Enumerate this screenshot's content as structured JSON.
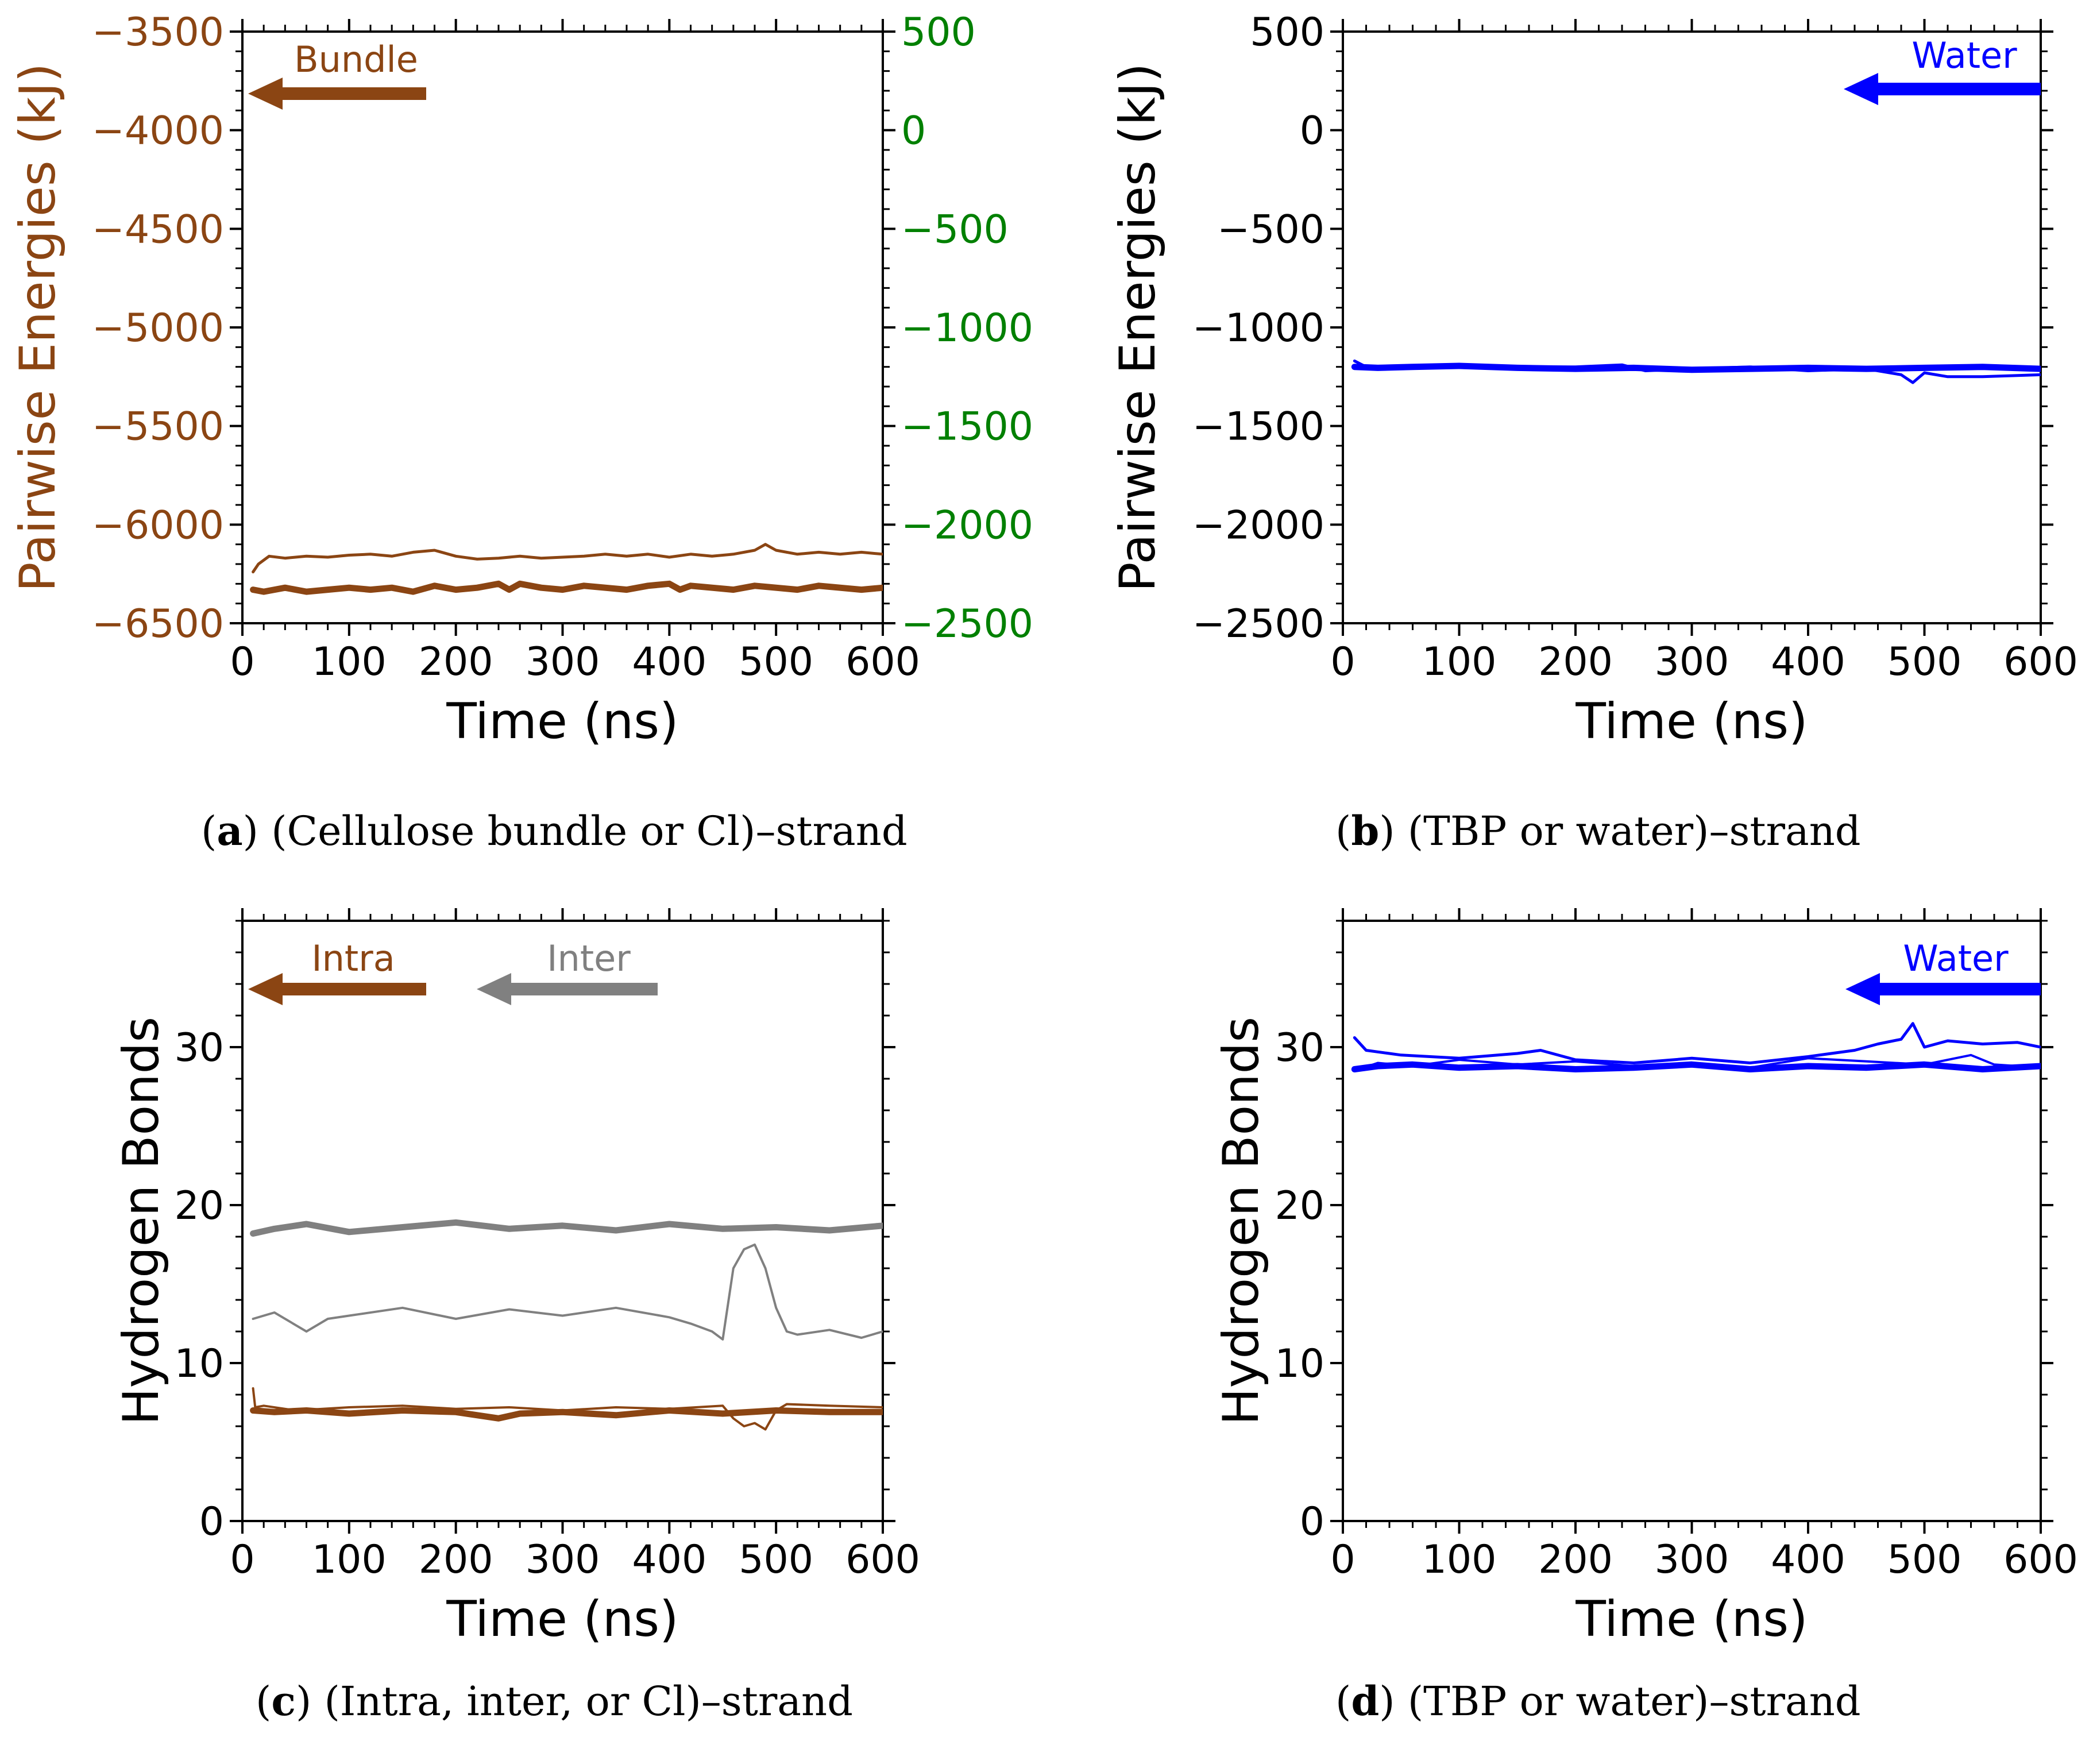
{
  "colors": {
    "brown": "#8b4513",
    "green": "#008000",
    "gray": "#808080",
    "blue": "#0000ff",
    "black": "#000000"
  },
  "captions": {
    "a": {
      "tag": "a",
      "text": "(Cellulose bundle or Cl)–strand"
    },
    "b": {
      "tag": "b",
      "text": "(TBP or water)–strand"
    },
    "c": {
      "tag": "c",
      "text": "(Intra, inter, or Cl)–strand"
    },
    "d": {
      "tag": "d",
      "text": "(TBP or water)–strand"
    }
  },
  "chart_data": [
    {
      "panel": "a",
      "type": "line",
      "xlabel": "Time (ns)",
      "ylabel": "Pairwise Energies (kJ)",
      "xlim": [
        0,
        600
      ],
      "ylim": [
        -6500,
        -3500
      ],
      "xticks": [
        "0",
        "100",
        "200",
        "300",
        "400",
        "500",
        "600"
      ],
      "yticks": [
        "−6500",
        "−6000",
        "−5500",
        "−5000",
        "−4500",
        "−4000",
        "−3500"
      ],
      "y2lim": [
        -2500,
        500
      ],
      "y2ticks": [
        "−2500",
        "−2000",
        "−1500",
        "−1000",
        "−500",
        "0",
        "500"
      ],
      "legend": [
        {
          "label": "Bundle",
          "color": "#8b4513",
          "arrow": "left"
        }
      ],
      "series": [
        {
          "name": "Bundle (thin)",
          "color": "#8b4513",
          "width": 5,
          "axis": "left",
          "x": [
            10,
            15,
            25,
            40,
            60,
            80,
            100,
            120,
            140,
            160,
            180,
            200,
            220,
            240,
            260,
            280,
            300,
            320,
            340,
            360,
            380,
            400,
            420,
            440,
            460,
            480,
            490,
            500,
            520,
            540,
            560,
            580,
            600
          ],
          "y": [
            -6240,
            -6200,
            -6160,
            -6170,
            -6160,
            -6165,
            -6155,
            -6150,
            -6160,
            -6140,
            -6130,
            -6160,
            -6175,
            -6170,
            -6160,
            -6170,
            -6165,
            -6160,
            -6150,
            -6160,
            -6150,
            -6165,
            -6150,
            -6160,
            -6150,
            -6130,
            -6100,
            -6130,
            -6150,
            -6140,
            -6150,
            -6140,
            -6150
          ]
        },
        {
          "name": "Bundle (thick)",
          "color": "#8b4513",
          "width": 11,
          "axis": "left",
          "x": [
            10,
            20,
            40,
            60,
            80,
            100,
            120,
            140,
            160,
            180,
            200,
            220,
            240,
            250,
            260,
            280,
            300,
            320,
            340,
            360,
            380,
            400,
            410,
            420,
            440,
            460,
            480,
            500,
            520,
            540,
            560,
            580,
            600
          ],
          "y": [
            -6330,
            -6340,
            -6320,
            -6340,
            -6330,
            -6320,
            -6330,
            -6320,
            -6340,
            -6310,
            -6330,
            -6320,
            -6300,
            -6330,
            -6300,
            -6320,
            -6330,
            -6310,
            -6320,
            -6330,
            -6310,
            -6300,
            -6330,
            -6310,
            -6320,
            -6330,
            -6310,
            -6320,
            -6330,
            -6310,
            -6320,
            -6330,
            -6320
          ]
        }
      ]
    },
    {
      "panel": "b",
      "type": "line",
      "xlabel": "Time (ns)",
      "ylabel": "Pairwise Energies (kJ)",
      "xlim": [
        0,
        600
      ],
      "ylim": [
        -2500,
        500
      ],
      "xticks": [
        "0",
        "100",
        "200",
        "300",
        "400",
        "500",
        "600"
      ],
      "yticks": [
        "−2500",
        "−2000",
        "−1500",
        "−1000",
        "−500",
        "0",
        "500"
      ],
      "legend": [
        {
          "label": "Water",
          "color": "#0000ff",
          "arrow": "left"
        }
      ],
      "series": [
        {
          "name": "Water (thin)",
          "color": "#0000ff",
          "width": 5,
          "axis": "left",
          "x": [
            10,
            20,
            50,
            100,
            150,
            200,
            240,
            260,
            300,
            350,
            400,
            450,
            480,
            490,
            500,
            520,
            550,
            600
          ],
          "y": [
            -1170,
            -1200,
            -1195,
            -1190,
            -1200,
            -1200,
            -1190,
            -1220,
            -1210,
            -1200,
            -1220,
            -1210,
            -1240,
            -1280,
            -1230,
            -1250,
            -1250,
            -1240
          ]
        },
        {
          "name": "Water (thick)",
          "color": "#0000ff",
          "width": 11,
          "axis": "left",
          "x": [
            10,
            30,
            60,
            100,
            150,
            200,
            250,
            300,
            350,
            400,
            450,
            500,
            550,
            600
          ],
          "y": [
            -1200,
            -1205,
            -1200,
            -1195,
            -1205,
            -1210,
            -1205,
            -1215,
            -1210,
            -1205,
            -1210,
            -1205,
            -1200,
            -1210
          ]
        }
      ]
    },
    {
      "panel": "c",
      "type": "line",
      "xlabel": "Time (ns)",
      "ylabel": "Hydrogen Bonds",
      "xlim": [
        0,
        600
      ],
      "ylim": [
        0,
        38
      ],
      "xticks": [
        "0",
        "100",
        "200",
        "300",
        "400",
        "500",
        "600"
      ],
      "yticks": [
        "0",
        "10",
        "20",
        "30"
      ],
      "legend": [
        {
          "label": "Intra",
          "color": "#8b4513",
          "arrow": "left"
        },
        {
          "label": "Inter",
          "color": "#808080",
          "arrow": "left"
        }
      ],
      "series": [
        {
          "name": "Inter (thick)",
          "color": "#808080",
          "width": 11,
          "axis": "left",
          "x": [
            10,
            30,
            60,
            100,
            150,
            200,
            250,
            300,
            350,
            400,
            450,
            500,
            550,
            600
          ],
          "y": [
            18.2,
            18.5,
            18.8,
            18.3,
            18.6,
            18.9,
            18.5,
            18.7,
            18.4,
            18.8,
            18.5,
            18.6,
            18.4,
            18.7
          ]
        },
        {
          "name": "Inter (thin)",
          "color": "#808080",
          "width": 4,
          "axis": "left",
          "x": [
            10,
            30,
            60,
            80,
            100,
            150,
            200,
            250,
            300,
            350,
            400,
            420,
            440,
            450,
            460,
            470,
            480,
            490,
            500,
            510,
            520,
            550,
            580,
            600
          ],
          "y": [
            12.8,
            13.2,
            12.0,
            12.8,
            13.0,
            13.5,
            12.8,
            13.4,
            13.0,
            13.5,
            12.9,
            12.5,
            12.0,
            11.5,
            16.0,
            17.2,
            17.5,
            16.0,
            13.5,
            12.0,
            11.8,
            12.1,
            11.6,
            12.0
          ]
        },
        {
          "name": "Intra (thin)",
          "color": "#8b4513",
          "width": 4,
          "axis": "left",
          "x": [
            10,
            12,
            20,
            50,
            100,
            150,
            200,
            250,
            300,
            350,
            400,
            450,
            460,
            470,
            480,
            490,
            500,
            510,
            550,
            600
          ],
          "y": [
            8.4,
            7.2,
            7.3,
            7.0,
            7.2,
            7.3,
            7.1,
            7.2,
            7.0,
            7.2,
            7.1,
            7.3,
            6.5,
            6.0,
            6.2,
            5.8,
            7.0,
            7.4,
            7.3,
            7.2
          ]
        },
        {
          "name": "Intra (thick)",
          "color": "#8b4513",
          "width": 11,
          "axis": "left",
          "x": [
            10,
            30,
            60,
            100,
            150,
            200,
            240,
            260,
            300,
            350,
            400,
            450,
            500,
            550,
            600
          ],
          "y": [
            7.0,
            6.9,
            7.0,
            6.8,
            7.0,
            6.9,
            6.5,
            6.8,
            6.9,
            6.7,
            7.0,
            6.8,
            7.0,
            6.9,
            6.9
          ]
        }
      ]
    },
    {
      "panel": "d",
      "type": "line",
      "xlabel": "Time (ns)",
      "ylabel": "Hydrogen Bonds",
      "xlim": [
        0,
        600
      ],
      "ylim": [
        0,
        38
      ],
      "xticks": [
        "0",
        "100",
        "200",
        "300",
        "400",
        "500",
        "600"
      ],
      "yticks": [
        "0",
        "10",
        "20",
        "30"
      ],
      "legend": [
        {
          "label": "Water",
          "color": "#0000ff",
          "arrow": "left"
        }
      ],
      "series": [
        {
          "name": "Water (thin)",
          "color": "#0000ff",
          "width": 5,
          "axis": "left",
          "x": [
            10,
            20,
            50,
            100,
            150,
            170,
            200,
            250,
            300,
            350,
            400,
            440,
            460,
            480,
            490,
            500,
            520,
            550,
            580,
            600
          ],
          "y": [
            30.6,
            29.8,
            29.5,
            29.3,
            29.6,
            29.8,
            29.2,
            29.0,
            29.3,
            29.0,
            29.4,
            29.8,
            30.2,
            30.5,
            31.5,
            30.0,
            30.4,
            30.2,
            30.3,
            30.0
          ]
        },
        {
          "name": "Water (thin 2)",
          "color": "#0000ff",
          "width": 4,
          "axis": "left",
          "x": [
            10,
            30,
            60,
            100,
            150,
            200,
            250,
            300,
            350,
            400,
            450,
            500,
            540,
            560,
            600
          ],
          "y": [
            28.5,
            29.0,
            28.8,
            29.2,
            28.9,
            29.1,
            28.8,
            29.0,
            28.7,
            29.3,
            29.1,
            28.9,
            29.5,
            28.9,
            28.7
          ]
        },
        {
          "name": "Water (thick)",
          "color": "#0000ff",
          "width": 11,
          "axis": "left",
          "x": [
            10,
            30,
            60,
            100,
            150,
            200,
            250,
            300,
            350,
            400,
            450,
            500,
            550,
            600
          ],
          "y": [
            28.6,
            28.8,
            28.9,
            28.7,
            28.8,
            28.6,
            28.7,
            28.9,
            28.6,
            28.8,
            28.7,
            28.9,
            28.6,
            28.8
          ]
        }
      ]
    }
  ]
}
